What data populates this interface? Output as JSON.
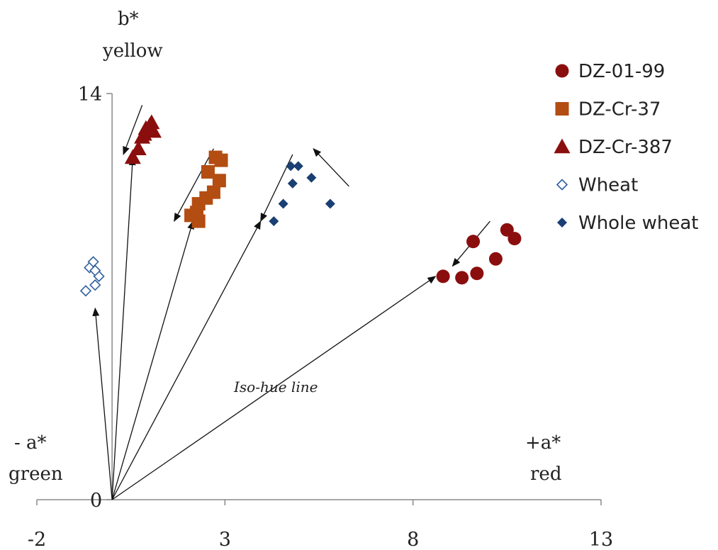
{
  "chart_data": {
    "type": "scatter",
    "title": "",
    "xlabel": "",
    "ylabel": "",
    "xlim": [
      -2,
      13
    ],
    "ylim": [
      0,
      14
    ],
    "x_ticks": [
      "-2",
      "3",
      "8",
      "13"
    ],
    "y_ticks": [
      "0",
      "14"
    ],
    "grid": false,
    "legend_position": "top-right",
    "axis_words": {
      "b_star": "b*",
      "yellow": "yellow",
      "minus_a_star": "- a*",
      "green": "green",
      "plus_a_star": "+a*",
      "red": "red"
    },
    "annotation": "Iso-hue line",
    "series": [
      {
        "name": "DZ-01-99",
        "marker": "circle",
        "color": "#8b0e0e",
        "points": [
          [
            8.8,
            7.7
          ],
          [
            9.3,
            7.65
          ],
          [
            9.7,
            7.8
          ],
          [
            9.6,
            8.9
          ],
          [
            10.2,
            8.3
          ],
          [
            10.5,
            9.3
          ],
          [
            10.7,
            9.0
          ]
        ]
      },
      {
        "name": "DZ-Cr-37",
        "marker": "square",
        "color": "#b34d12",
        "points": [
          [
            2.1,
            9.8
          ],
          [
            2.3,
            10.2
          ],
          [
            2.5,
            10.4
          ],
          [
            2.7,
            10.6
          ],
          [
            2.55,
            11.3
          ],
          [
            2.75,
            11.8
          ],
          [
            2.9,
            11.7
          ],
          [
            2.85,
            11.0
          ],
          [
            2.3,
            9.6
          ],
          [
            2.25,
            9.9
          ]
        ]
      },
      {
        "name": "DZ-Cr-387",
        "marker": "triangle",
        "color": "#8b0e0e",
        "points": [
          [
            0.55,
            11.8
          ],
          [
            0.7,
            12.1
          ],
          [
            0.8,
            12.5
          ],
          [
            0.9,
            12.8
          ],
          [
            1.0,
            12.9
          ],
          [
            1.1,
            12.7
          ],
          [
            1.05,
            13.0
          ],
          [
            0.85,
            12.6
          ]
        ]
      },
      {
        "name": "Wheat",
        "marker": "diamond-open",
        "color": "#2f5e9e",
        "points": [
          [
            -0.7,
            7.2
          ],
          [
            -0.45,
            7.4
          ],
          [
            -0.6,
            8.0
          ],
          [
            -0.5,
            8.2
          ],
          [
            -0.35,
            7.7
          ],
          [
            -0.45,
            7.9
          ]
        ]
      },
      {
        "name": "Whole wheat",
        "marker": "diamond",
        "color": "#1a3f73",
        "points": [
          [
            4.3,
            9.6
          ],
          [
            4.55,
            10.2
          ],
          [
            4.8,
            10.9
          ],
          [
            4.95,
            11.5
          ],
          [
            5.3,
            11.1
          ],
          [
            5.8,
            10.2
          ],
          [
            4.75,
            11.5
          ]
        ]
      }
    ],
    "iso_hue_lines": [
      {
        "from": [
          0,
          0
        ],
        "to": [
          -0.45,
          6.6
        ]
      },
      {
        "from": [
          0,
          0
        ],
        "to": [
          0.55,
          11.8
        ]
      },
      {
        "from": [
          0,
          0
        ],
        "to": [
          2.15,
          9.6
        ]
      },
      {
        "from": [
          0,
          0
        ],
        "to": [
          3.95,
          9.6
        ]
      },
      {
        "from": [
          0,
          0
        ],
        "to": [
          8.6,
          7.7
        ]
      }
    ],
    "trend_arrows": [
      {
        "from": [
          0.8,
          13.6
        ],
        "to": [
          0.3,
          11.9
        ]
      },
      {
        "from": [
          2.7,
          12.1
        ],
        "to": [
          1.65,
          9.6
        ]
      },
      {
        "from": [
          4.8,
          11.9
        ],
        "to": [
          3.95,
          9.6
        ]
      },
      {
        "from": [
          10.05,
          9.6
        ],
        "to": [
          9.05,
          8.05
        ]
      },
      {
        "from": [
          6.3,
          10.8
        ],
        "to": [
          5.35,
          12.1
        ]
      }
    ]
  }
}
